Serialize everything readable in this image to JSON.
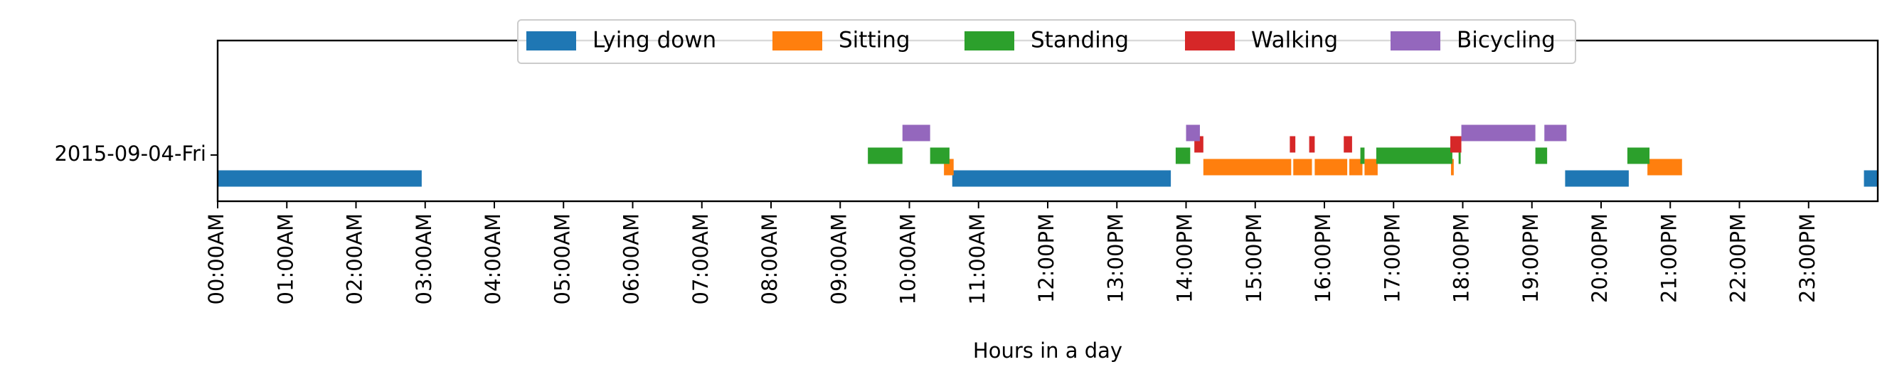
{
  "chart_data": {
    "type": "timeline",
    "xlabel": "Hours in a day",
    "ylabel": "",
    "xlim": [
      0,
      24
    ],
    "grid": false,
    "legend_placement": "top-center",
    "row_label": "2015-09-04-Fri",
    "x_tick_labels": [
      "00:00AM",
      "01:00AM",
      "02:00AM",
      "03:00AM",
      "04:00AM",
      "05:00AM",
      "06:00AM",
      "07:00AM",
      "08:00AM",
      "09:00AM",
      "10:00AM",
      "11:00AM",
      "12:00PM",
      "13:00PM",
      "14:00PM",
      "15:00PM",
      "16:00PM",
      "17:00PM",
      "18:00PM",
      "19:00PM",
      "20:00PM",
      "21:00PM",
      "22:00PM",
      "23:00PM"
    ],
    "series": [
      {
        "name": "Lying down",
        "color": "#1f77b4",
        "intervals": [
          [
            0,
            2.95
          ],
          [
            10.62,
            13.78
          ],
          [
            19.48,
            20.4
          ],
          [
            23.8,
            24
          ]
        ]
      },
      {
        "name": "Sitting",
        "color": "#ff7f0e",
        "intervals": [
          [
            10.5,
            10.64
          ],
          [
            14.25,
            15.52
          ],
          [
            15.55,
            15.82
          ],
          [
            15.86,
            16.33
          ],
          [
            16.36,
            16.55
          ],
          [
            16.58,
            16.77
          ],
          [
            17.83,
            17.87
          ],
          [
            20.67,
            21.17
          ]
        ]
      },
      {
        "name": "Standing",
        "color": "#2ca02c",
        "intervals": [
          [
            9.4,
            9.9
          ],
          [
            10.3,
            10.58
          ],
          [
            13.85,
            14.06
          ],
          [
            16.52,
            16.58
          ],
          [
            16.75,
            17.85
          ],
          [
            17.94,
            17.97
          ],
          [
            19.05,
            19.22
          ],
          [
            20.38,
            20.7
          ]
        ]
      },
      {
        "name": "Walking",
        "color": "#d62728",
        "intervals": [
          [
            14.12,
            14.25
          ],
          [
            15.5,
            15.58
          ],
          [
            15.78,
            15.86
          ],
          [
            16.28,
            16.4
          ],
          [
            17.82,
            17.98
          ]
        ]
      },
      {
        "name": "Bicycling",
        "color": "#9467bd",
        "intervals": [
          [
            9.9,
            10.3
          ],
          [
            14.0,
            14.2
          ],
          [
            17.98,
            19.05
          ],
          [
            19.18,
            19.5
          ]
        ]
      }
    ]
  }
}
